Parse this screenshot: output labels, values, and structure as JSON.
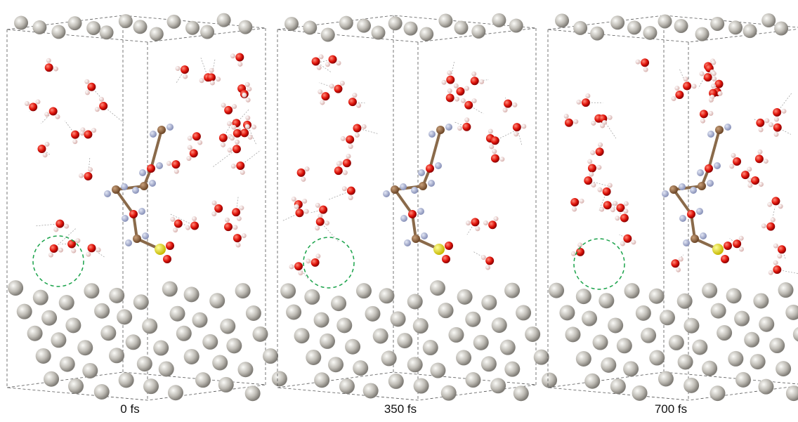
{
  "panels": [
    {
      "label": "0 fs"
    },
    {
      "label": "350 fs"
    },
    {
      "label": "700 fs"
    }
  ]
}
